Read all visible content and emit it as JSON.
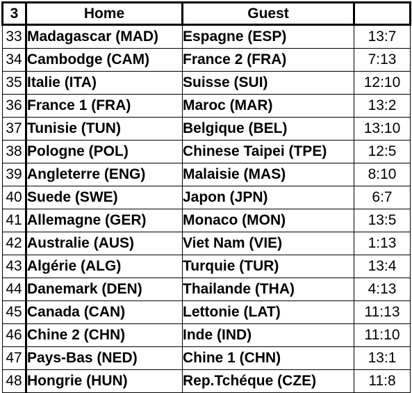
{
  "header": {
    "round": "3",
    "home_label": "Home",
    "guest_label": "Guest",
    "score_label": ""
  },
  "matches": [
    {
      "no": "33",
      "home": "Madagascar (MAD)",
      "guest": "Espagne (ESP)",
      "score": "13:7"
    },
    {
      "no": "34",
      "home": "Cambodge (CAM)",
      "guest": "France 2 (FRA)",
      "score": "7:13"
    },
    {
      "no": "35",
      "home": "Italie (ITA)",
      "guest": "Suisse (SUI)",
      "score": "12:10"
    },
    {
      "no": "36",
      "home": "France 1 (FRA)",
      "guest": "Maroc (MAR)",
      "score": "13:2"
    },
    {
      "no": "37",
      "home": "Tunisie (TUN)",
      "guest": "Belgique (BEL)",
      "score": "13:10"
    },
    {
      "no": "38",
      "home": "Pologne (POL)",
      "guest": "Chinese Taipei (TPE)",
      "score": "12:5"
    },
    {
      "no": "39",
      "home": "Angleterre (ENG)",
      "guest": "Malaisie (MAS)",
      "score": "8:10"
    },
    {
      "no": "40",
      "home": "Suede (SWE)",
      "guest": "Japon (JPN)",
      "score": "6:7"
    },
    {
      "no": "41",
      "home": "Allemagne (GER)",
      "guest": "Monaco (MON)",
      "score": "13:5"
    },
    {
      "no": "42",
      "home": "Australie (AUS)",
      "guest": "Viet Nam (VIE)",
      "score": "1:13"
    },
    {
      "no": "43",
      "home": "Algérie (ALG)",
      "guest": "Turquie (TUR)",
      "score": "13:4"
    },
    {
      "no": "44",
      "home": "Danemark (DEN)",
      "guest": "Thailande (THA)",
      "score": "4:13"
    },
    {
      "no": "45",
      "home": "Canada (CAN)",
      "guest": "Lettonie (LAT)",
      "score": "11:13"
    },
    {
      "no": "46",
      "home": "Chine 2 (CHN)",
      "guest": "Inde (IND)",
      "score": "11:10"
    },
    {
      "no": "47",
      "home": "Pays-Bas (NED)",
      "guest": "Chine 1 (CHN)",
      "score": "13:1"
    },
    {
      "no": "48",
      "home": "Hongrie (HUN)",
      "guest": "Rep.Tchéque (CZE)",
      "score": "11:8"
    }
  ]
}
